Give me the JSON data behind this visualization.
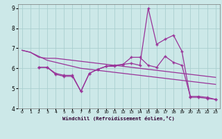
{
  "background_color": "#cce8e8",
  "grid_color": "#aacfcf",
  "line_color": "#993399",
  "xlabel": "Windchill (Refroidissement éolien,°C)",
  "xlim": [
    -0.5,
    23.5
  ],
  "ylim": [
    4,
    9.2
  ],
  "xticks": [
    0,
    1,
    2,
    3,
    4,
    5,
    6,
    7,
    8,
    9,
    10,
    11,
    12,
    13,
    14,
    15,
    16,
    17,
    18,
    19,
    20,
    21,
    22,
    23
  ],
  "yticks": [
    4,
    5,
    6,
    7,
    8,
    9
  ],
  "s1_x": [
    0,
    1,
    2,
    3,
    4,
    5,
    6,
    7,
    8,
    9,
    10,
    11,
    12,
    13,
    14,
    15,
    16,
    17,
    18,
    19,
    20,
    21,
    22,
    23
  ],
  "s1_y": [
    6.9,
    6.8,
    6.6,
    6.4,
    6.3,
    6.2,
    6.1,
    6.0,
    5.95,
    5.9,
    5.85,
    5.8,
    5.75,
    5.7,
    5.65,
    5.6,
    5.55,
    5.5,
    5.45,
    5.4,
    5.35,
    5.3,
    5.25,
    5.2
  ],
  "s2_x": [
    0,
    1,
    2,
    3,
    4,
    5,
    6,
    7,
    8,
    9,
    10,
    11,
    12,
    13,
    14,
    15,
    16,
    17,
    18,
    19,
    20,
    21,
    22,
    23
  ],
  "s2_y": [
    6.9,
    6.8,
    6.55,
    6.5,
    6.5,
    6.45,
    6.4,
    6.35,
    6.3,
    6.25,
    6.2,
    6.15,
    6.1,
    6.05,
    6.0,
    5.95,
    5.9,
    5.85,
    5.8,
    5.75,
    5.7,
    5.65,
    5.6,
    5.55
  ],
  "s3_x": [
    2,
    3,
    4,
    5,
    6,
    7,
    8,
    9,
    10,
    11,
    12,
    13,
    14,
    15,
    16,
    17,
    18,
    19,
    20,
    21,
    22,
    23
  ],
  "s3_y": [
    6.05,
    6.05,
    5.75,
    5.65,
    5.65,
    4.85,
    5.75,
    5.95,
    6.1,
    6.1,
    6.2,
    6.55,
    6.55,
    6.15,
    6.05,
    6.6,
    6.3,
    6.15,
    4.6,
    4.6,
    4.55,
    4.45
  ],
  "s4_x": [
    2,
    3,
    4,
    5,
    6,
    7,
    8,
    9,
    10,
    11,
    12,
    13,
    14,
    15,
    16,
    17,
    18,
    19,
    20,
    21,
    22,
    23
  ],
  "s4_y": [
    6.05,
    6.05,
    5.7,
    5.6,
    5.6,
    4.85,
    5.75,
    5.95,
    6.1,
    6.15,
    6.2,
    6.25,
    6.15,
    9.0,
    7.2,
    7.45,
    7.65,
    6.85,
    4.55,
    4.55,
    4.5,
    4.45
  ]
}
